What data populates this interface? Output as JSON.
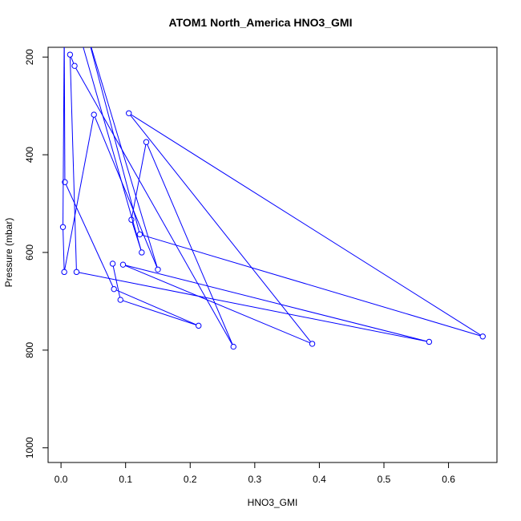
{
  "chart_data": {
    "type": "line",
    "title": "ATOM1 North_America HNO3_GMI",
    "xlabel": "HNO3_GMI",
    "ylabel": "Pressure (mbar)",
    "xlim": [
      -0.02,
      0.675
    ],
    "ylim": [
      1030,
      180
    ],
    "y_reversed": true,
    "xticks": [
      0.0,
      0.1,
      0.2,
      0.3,
      0.4,
      0.5,
      0.6
    ],
    "xtick_labels": [
      "0.0",
      "0.1",
      "0.2",
      "0.3",
      "0.4",
      "0.5",
      "0.6"
    ],
    "yticks": [
      200,
      400,
      600,
      800,
      1000
    ],
    "ytick_labels": [
      "200",
      "400",
      "600",
      "800",
      "1000"
    ],
    "grid": false,
    "series": [
      {
        "color": "#0000ff",
        "marker": "open-circle",
        "points": [
          {
            "x": 0.028,
            "y": 150,
            "marker": false
          },
          {
            "x": 0.125,
            "y": 600
          },
          {
            "x": 0.109,
            "y": 533
          },
          {
            "x": 0.132,
            "y": 374
          },
          {
            "x": 0.267,
            "y": 793
          },
          {
            "x": 0.021,
            "y": 218
          },
          {
            "x": 0.014,
            "y": 195
          },
          {
            "x": 0.024,
            "y": 640
          },
          {
            "x": 0.57,
            "y": 783
          },
          {
            "x": 0.096,
            "y": 625
          },
          {
            "x": 0.389,
            "y": 787
          },
          {
            "x": 0.105,
            "y": 315
          },
          {
            "x": 0.653,
            "y": 772
          },
          {
            "x": 0.122,
            "y": 563
          },
          {
            "x": 0.04,
            "y": 150,
            "marker": false
          },
          {
            "x": 0.15,
            "y": 635
          },
          {
            "x": 0.051,
            "y": 318
          },
          {
            "x": 0.005,
            "y": 640
          },
          {
            "x": 0.003,
            "y": 548
          },
          {
            "x": 0.005,
            "y": 150,
            "marker": false
          },
          {
            "x": 0.006,
            "y": 456
          },
          {
            "x": 0.082,
            "y": 675
          },
          {
            "x": 0.213,
            "y": 750
          },
          {
            "x": 0.092,
            "y": 697
          },
          {
            "x": 0.08,
            "y": 623
          }
        ]
      }
    ]
  }
}
